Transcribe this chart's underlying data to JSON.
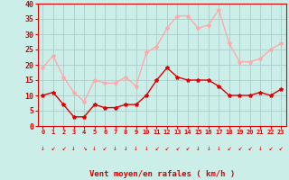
{
  "hours": [
    0,
    1,
    2,
    3,
    4,
    5,
    6,
    7,
    8,
    9,
    10,
    11,
    12,
    13,
    14,
    15,
    16,
    17,
    18,
    19,
    20,
    21,
    22,
    23
  ],
  "wind_avg": [
    10,
    11,
    7,
    3,
    3,
    7,
    6,
    6,
    7,
    7,
    10,
    15,
    19,
    16,
    15,
    15,
    15,
    13,
    10,
    10,
    10,
    11,
    10,
    12
  ],
  "wind_gust": [
    19,
    23,
    16,
    11,
    8,
    15,
    14,
    14,
    16,
    13,
    24,
    26,
    32,
    36,
    36,
    32,
    33,
    38,
    27,
    21,
    21,
    22,
    25,
    27
  ],
  "avg_color": "#dd0000",
  "gust_color": "#ffaaaa",
  "bg_color": "#cceee8",
  "grid_color": "#aacccc",
  "xlabel": "Vent moyen/en rafales ( km/h )",
  "ylim": [
    0,
    40
  ],
  "yticks": [
    0,
    5,
    10,
    15,
    20,
    25,
    30,
    35,
    40
  ],
  "xlim": [
    -0.5,
    23.5
  ],
  "marker_size": 3,
  "line_width": 1.0,
  "arrow_chars": [
    "↓",
    "↙",
    "↙",
    "↓",
    "↘",
    "↓",
    "↙",
    "↓",
    "↓",
    "↓",
    "↓",
    "↙",
    "↙",
    "↙",
    "↙",
    "↓",
    "↓",
    "↓",
    "↙",
    "↙",
    "↙",
    "↓",
    "↙",
    "↙"
  ]
}
